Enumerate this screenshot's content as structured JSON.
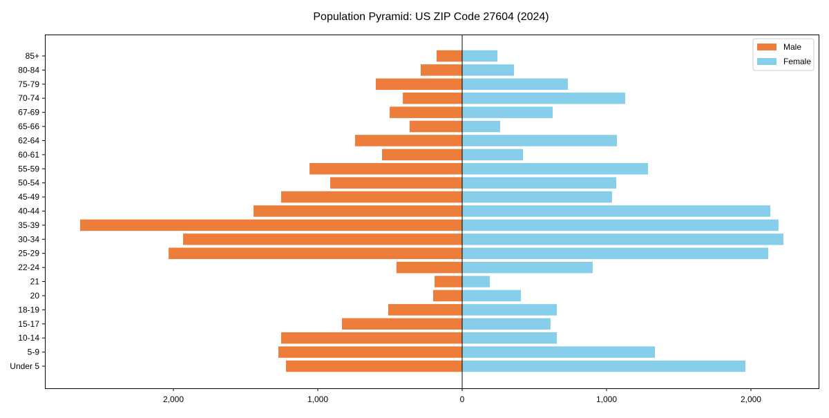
{
  "chart_data": {
    "type": "bar",
    "orientation": "horizontal",
    "title": "Population Pyramid: US ZIP Code 27604 (2024)",
    "xlabel": "",
    "ylabel": "",
    "categories": [
      "Under 5",
      "5-9",
      "10-14",
      "15-17",
      "18-19",
      "20",
      "21",
      "22-24",
      "25-29",
      "30-34",
      "35-39",
      "40-44",
      "45-49",
      "50-54",
      "55-59",
      "60-61",
      "62-64",
      "65-66",
      "67-69",
      "70-74",
      "75-79",
      "80-84",
      "85+"
    ],
    "series": [
      {
        "name": "Male",
        "color": "#ED7D3A",
        "side": "left",
        "values": [
          1220,
          1273,
          1254,
          833,
          512,
          201,
          191,
          455,
          2033,
          1933,
          2646,
          1445,
          1254,
          914,
          1057,
          555,
          742,
          364,
          502,
          411,
          598,
          287,
          177
        ]
      },
      {
        "name": "Female",
        "color": "#87CEEB",
        "side": "right",
        "values": [
          1962,
          1335,
          656,
          612,
          656,
          407,
          191,
          904,
          2120,
          2225,
          2191,
          2134,
          1038,
          1067,
          1287,
          421,
          1072,
          263,
          627,
          1129,
          732,
          359,
          244
        ]
      }
    ],
    "xlim": [
      -2890,
      2469
    ],
    "xticks": [
      -2000,
      -1000,
      0,
      1000,
      2000
    ],
    "xtick_labels": [
      "2,000",
      "1,000",
      "0",
      "1,000",
      "2,000"
    ],
    "legend": {
      "placement": "top-right",
      "entries": [
        "Male",
        "Female"
      ]
    },
    "grid": false
  }
}
